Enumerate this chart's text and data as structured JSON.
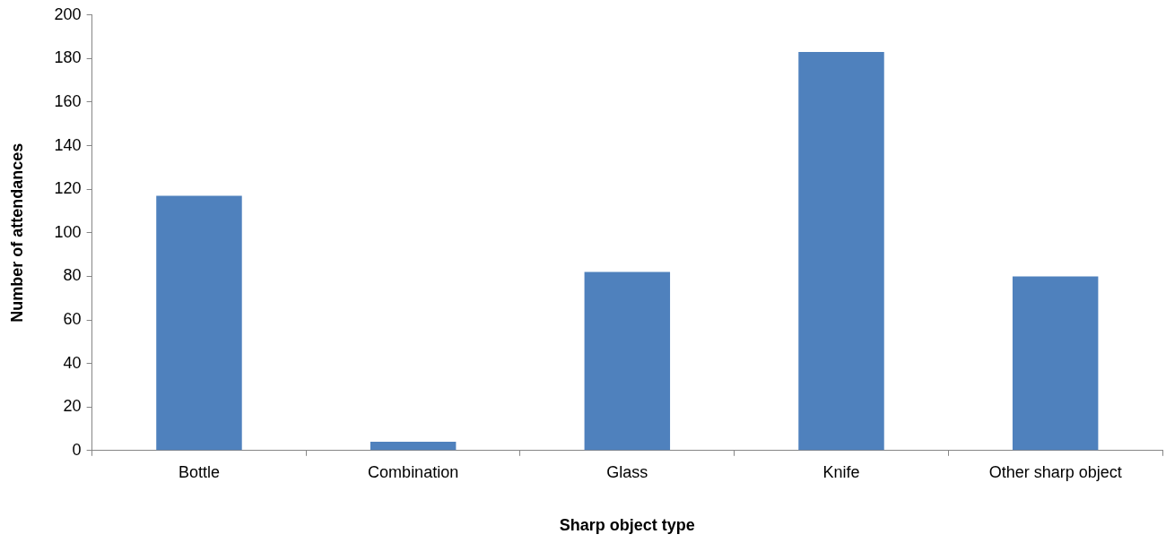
{
  "chart_data": {
    "type": "bar",
    "xlabel": "Sharp object type",
    "ylabel": "Number of attendances",
    "categories": [
      "Bottle",
      "Combination",
      "Glass",
      "Knife",
      "Other sharp object"
    ],
    "values": [
      117,
      4,
      82,
      183,
      80
    ],
    "color": "#4f81bd",
    "ylim": [
      0,
      200
    ],
    "yticks": [
      0,
      20,
      40,
      60,
      80,
      100,
      120,
      140,
      160,
      180,
      200
    ],
    "grid": false,
    "legend": false
  }
}
